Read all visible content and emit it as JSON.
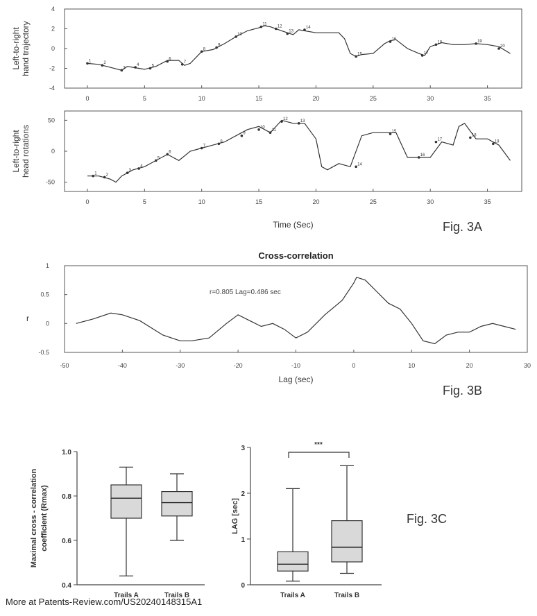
{
  "footer": "More at Patents-Review.com/US20240148315A1",
  "chart_data": [
    {
      "type": "line",
      "figure_label": "Fig. 3A",
      "ylabel_line1": "Left-to-right",
      "ylabel_line2": "hand trajectory",
      "xlabel": "",
      "xlim": [
        -2,
        38
      ],
      "ylim": [
        -4,
        4
      ],
      "xticks": [
        0,
        5,
        10,
        15,
        20,
        25,
        30,
        35
      ],
      "yticks": [
        -4,
        -2,
        0,
        2,
        4
      ],
      "series": [
        {
          "x": [
            0,
            1,
            2,
            3,
            3.5,
            4,
            5,
            6,
            7,
            8,
            8.5,
            9,
            10,
            11,
            12,
            13,
            14,
            15,
            15.5,
            16,
            17,
            18,
            18.5,
            19,
            20,
            21,
            22,
            22.5,
            23,
            23.5,
            24,
            25,
            26,
            26.5,
            27,
            28,
            29,
            29.5,
            30,
            31,
            32,
            33,
            34,
            35,
            36,
            37
          ],
          "y": [
            -1.5,
            -1.6,
            -1.9,
            -2.2,
            -1.8,
            -1.9,
            -2.1,
            -1.8,
            -1.2,
            -1.2,
            -1.7,
            -1.5,
            -0.3,
            -0.1,
            0.5,
            1.2,
            1.8,
            2.1,
            2.3,
            2.2,
            1.8,
            1.4,
            1.9,
            1.8,
            1.6,
            1.6,
            1.6,
            1.0,
            -0.5,
            -0.8,
            -0.6,
            -0.5,
            0.5,
            0.8,
            0.9,
            0.0,
            -0.5,
            -0.7,
            0.2,
            0.6,
            0.4,
            0.4,
            0.5,
            0.4,
            0.2,
            -0.5
          ]
        }
      ],
      "markers": [
        {
          "x": 0,
          "y": -1.5,
          "label": "1"
        },
        {
          "x": 1.3,
          "y": -1.7,
          "label": "2"
        },
        {
          "x": 3,
          "y": -2.2,
          "label": "3"
        },
        {
          "x": 4.2,
          "y": -1.9,
          "label": "4"
        },
        {
          "x": 5.5,
          "y": -2.0,
          "label": "5"
        },
        {
          "x": 7,
          "y": -1.3,
          "label": "6"
        },
        {
          "x": 8.3,
          "y": -1.6,
          "label": "7"
        },
        {
          "x": 10,
          "y": -0.3,
          "label": "8"
        },
        {
          "x": 11.3,
          "y": 0.1,
          "label": "9"
        },
        {
          "x": 13,
          "y": 1.2,
          "label": "10"
        },
        {
          "x": 15.2,
          "y": 2.2,
          "label": "11"
        },
        {
          "x": 16.5,
          "y": 2.0,
          "label": "12"
        },
        {
          "x": 17.5,
          "y": 1.5,
          "label": "13"
        },
        {
          "x": 19,
          "y": 1.9,
          "label": "14"
        },
        {
          "x": 23.5,
          "y": -0.8,
          "label": "15"
        },
        {
          "x": 26.5,
          "y": 0.7,
          "label": "16"
        },
        {
          "x": 29.3,
          "y": -0.7,
          "label": "17"
        },
        {
          "x": 30.5,
          "y": 0.4,
          "label": "18"
        },
        {
          "x": 34,
          "y": 0.5,
          "label": "19"
        },
        {
          "x": 36,
          "y": 0.0,
          "label": "20"
        }
      ]
    },
    {
      "type": "line",
      "ylabel_line1": "Left-to-right",
      "ylabel_line2": "head rotations",
      "xlabel": "Time (Sec)",
      "xlim": [
        -2,
        38
      ],
      "ylim": [
        -65,
        65
      ],
      "xticks": [
        0,
        5,
        10,
        15,
        20,
        25,
        30,
        35
      ],
      "yticks": [
        -50,
        0,
        50
      ],
      "series": [
        {
          "x": [
            0,
            1,
            2,
            2.5,
            3,
            4,
            5,
            6,
            7,
            8,
            9,
            10,
            11,
            12,
            13,
            14,
            15,
            16,
            17,
            18,
            19,
            20,
            20.5,
            21,
            22,
            23,
            24,
            25,
            26,
            27,
            28,
            29,
            30,
            31,
            32,
            32.5,
            33,
            34,
            35,
            36,
            37
          ],
          "y": [
            -40,
            -40,
            -45,
            -50,
            -40,
            -30,
            -25,
            -15,
            -5,
            -15,
            0,
            5,
            10,
            15,
            25,
            35,
            40,
            30,
            50,
            45,
            45,
            20,
            -25,
            -30,
            -20,
            -25,
            25,
            30,
            30,
            30,
            -10,
            -10,
            -10,
            15,
            10,
            40,
            45,
            20,
            20,
            10,
            -15
          ]
        }
      ],
      "markers": [
        {
          "x": 0.5,
          "y": -40,
          "label": "1"
        },
        {
          "x": 1.5,
          "y": -42,
          "label": "2"
        },
        {
          "x": 3.5,
          "y": -35,
          "label": "3"
        },
        {
          "x": 4.5,
          "y": -28,
          "label": "4"
        },
        {
          "x": 6,
          "y": -15,
          "label": "5"
        },
        {
          "x": 7,
          "y": -5,
          "label": "6"
        },
        {
          "x": 10,
          "y": 5,
          "label": "7"
        },
        {
          "x": 11.5,
          "y": 12,
          "label": "8"
        },
        {
          "x": 13.5,
          "y": 25,
          "label": "9"
        },
        {
          "x": 15,
          "y": 35,
          "label": "10"
        },
        {
          "x": 16,
          "y": 30,
          "label": "11"
        },
        {
          "x": 17,
          "y": 48,
          "label": "12"
        },
        {
          "x": 18.5,
          "y": 45,
          "label": "13"
        },
        {
          "x": 23.5,
          "y": -25,
          "label": "14"
        },
        {
          "x": 26.5,
          "y": 28,
          "label": "15"
        },
        {
          "x": 29,
          "y": -10,
          "label": "16"
        },
        {
          "x": 30.5,
          "y": 15,
          "label": "17"
        },
        {
          "x": 33.5,
          "y": 22,
          "label": "18"
        },
        {
          "x": 35.5,
          "y": 12,
          "label": "19"
        }
      ]
    },
    {
      "type": "line",
      "figure_label": "Fig. 3B",
      "title": "Cross-correlation",
      "xlabel": "Lag (sec)",
      "ylabel": "r",
      "annotation": "r=0.805  Lag=0.486 sec",
      "xlim": [
        -50,
        30
      ],
      "ylim": [
        -0.5,
        1
      ],
      "xticks": [
        -50,
        -40,
        -30,
        -20,
        -10,
        0,
        10,
        20,
        30
      ],
      "xtick_labels": [
        "-50",
        "-40",
        "-30",
        "-20",
        "-10",
        "0",
        "10",
        "20",
        "30"
      ],
      "yticks": [
        -0.5,
        0,
        0.5,
        1
      ],
      "ytick_labels": [
        "-0.5",
        "0",
        "0.5",
        "1"
      ],
      "series": [
        {
          "x": [
            -48,
            -45,
            -42,
            -40,
            -37,
            -33,
            -30,
            -28,
            -25,
            -22,
            -20,
            -18,
            -16,
            -14,
            -12,
            -10,
            -8,
            -5,
            -2,
            0,
            0.5,
            2,
            4,
            6,
            8,
            10,
            12,
            14,
            16,
            18,
            20,
            22,
            24,
            26,
            28
          ],
          "y": [
            0.0,
            0.08,
            0.18,
            0.15,
            0.05,
            -0.2,
            -0.3,
            -0.3,
            -0.25,
            0.0,
            0.15,
            0.05,
            -0.05,
            0.0,
            -0.1,
            -0.25,
            -0.15,
            0.15,
            0.4,
            0.7,
            0.8,
            0.75,
            0.55,
            0.35,
            0.25,
            0.0,
            -0.3,
            -0.35,
            -0.2,
            -0.15,
            -0.15,
            -0.05,
            0.0,
            -0.05,
            -0.1
          ]
        }
      ]
    },
    {
      "type": "box",
      "figure_label": "Fig. 3C",
      "ylabel": "Maximal cross - correlation coefficient (Rmax)",
      "ylim": [
        0.4,
        1.0
      ],
      "yticks": [
        0.4,
        0.6,
        0.8,
        1.0
      ],
      "ytick_labels": [
        "0.4",
        "0.6",
        "0.8",
        "1.0"
      ],
      "categories": [
        "Trails A",
        "Trails B"
      ],
      "boxes": [
        {
          "min": 0.44,
          "q1": 0.7,
          "median": 0.79,
          "q3": 0.85,
          "max": 0.93
        },
        {
          "min": 0.6,
          "q1": 0.71,
          "median": 0.77,
          "q3": 0.82,
          "max": 0.9
        }
      ]
    },
    {
      "type": "box",
      "ylabel": "LAG [sec]",
      "significance": "***",
      "ylim": [
        0,
        3
      ],
      "yticks": [
        0,
        1,
        2,
        3
      ],
      "ytick_labels": [
        "0",
        "1",
        "2",
        "3"
      ],
      "categories": [
        "Trails A",
        "Trails B"
      ],
      "boxes": [
        {
          "min": 0.08,
          "q1": 0.3,
          "median": 0.45,
          "q3": 0.72,
          "max": 2.1
        },
        {
          "min": 0.25,
          "q1": 0.5,
          "median": 0.82,
          "q3": 1.4,
          "max": 2.6
        }
      ]
    }
  ]
}
